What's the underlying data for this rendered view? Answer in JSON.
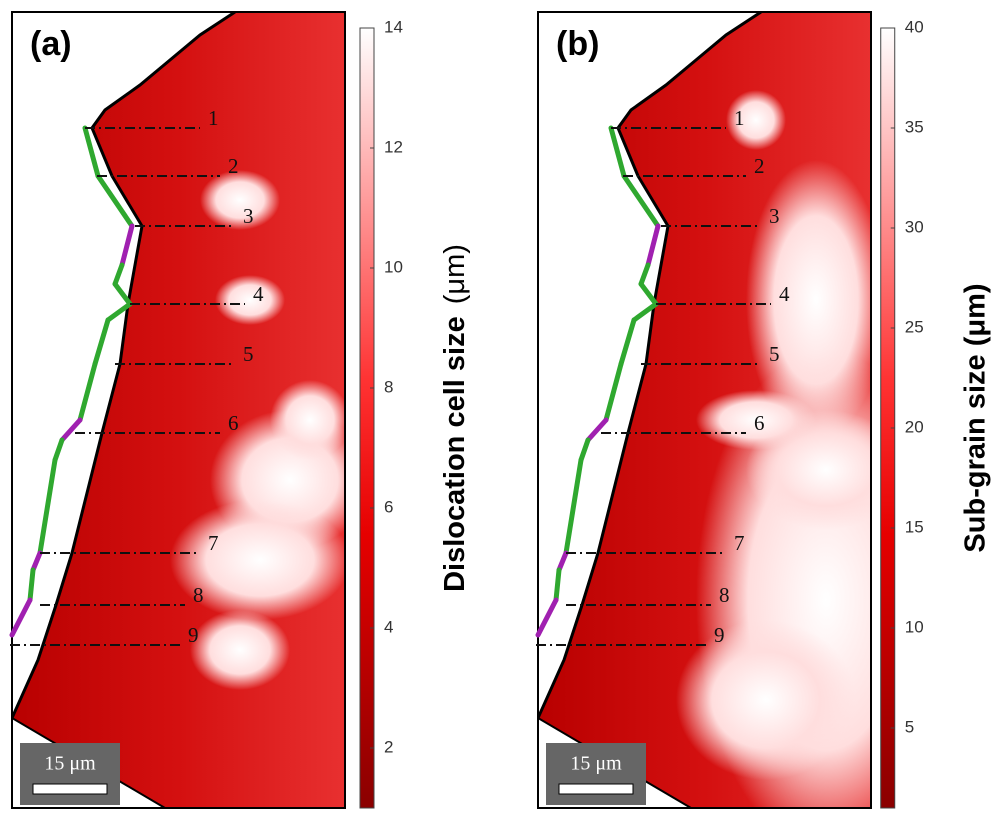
{
  "panels": [
    {
      "label": "(a)",
      "scale_bar": "15 μm",
      "line_labels": [
        "1",
        "2",
        "3",
        "4",
        "5",
        "6",
        "7",
        "8",
        "9"
      ],
      "colorbar": {
        "title": "Dislocation cell size",
        "unit": "(μm)",
        "range": [
          1,
          14
        ],
        "ticks": [
          2,
          4,
          6,
          8,
          10,
          12,
          14
        ]
      }
    },
    {
      "label": "(b)",
      "scale_bar": "15 μm",
      "line_labels": [
        "1",
        "2",
        "3",
        "4",
        "5",
        "6",
        "7",
        "8",
        "9"
      ],
      "colorbar": {
        "title": "Sub-grain size  (μm)",
        "range": [
          1,
          40
        ],
        "ticks": [
          5,
          10,
          15,
          20,
          25,
          30,
          35,
          40
        ]
      }
    }
  ]
}
